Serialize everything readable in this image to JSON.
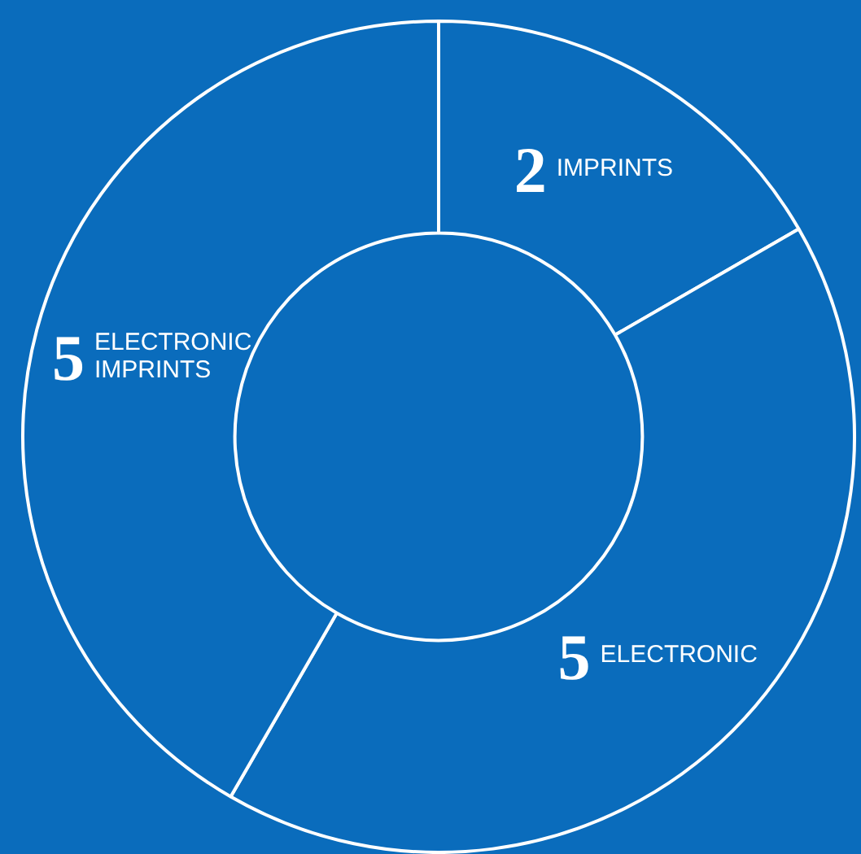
{
  "chart_data": {
    "type": "donut",
    "categories": [
      "IMPRINTS",
      "ELECTRONIC",
      "ELECTRONIC IMPRINTS"
    ],
    "values": [
      2,
      5,
      5
    ],
    "colors": [
      "#0a6cbc",
      "#0a6cbc",
      "#0a6cbc"
    ],
    "data_labels": true,
    "legend": false
  }
}
